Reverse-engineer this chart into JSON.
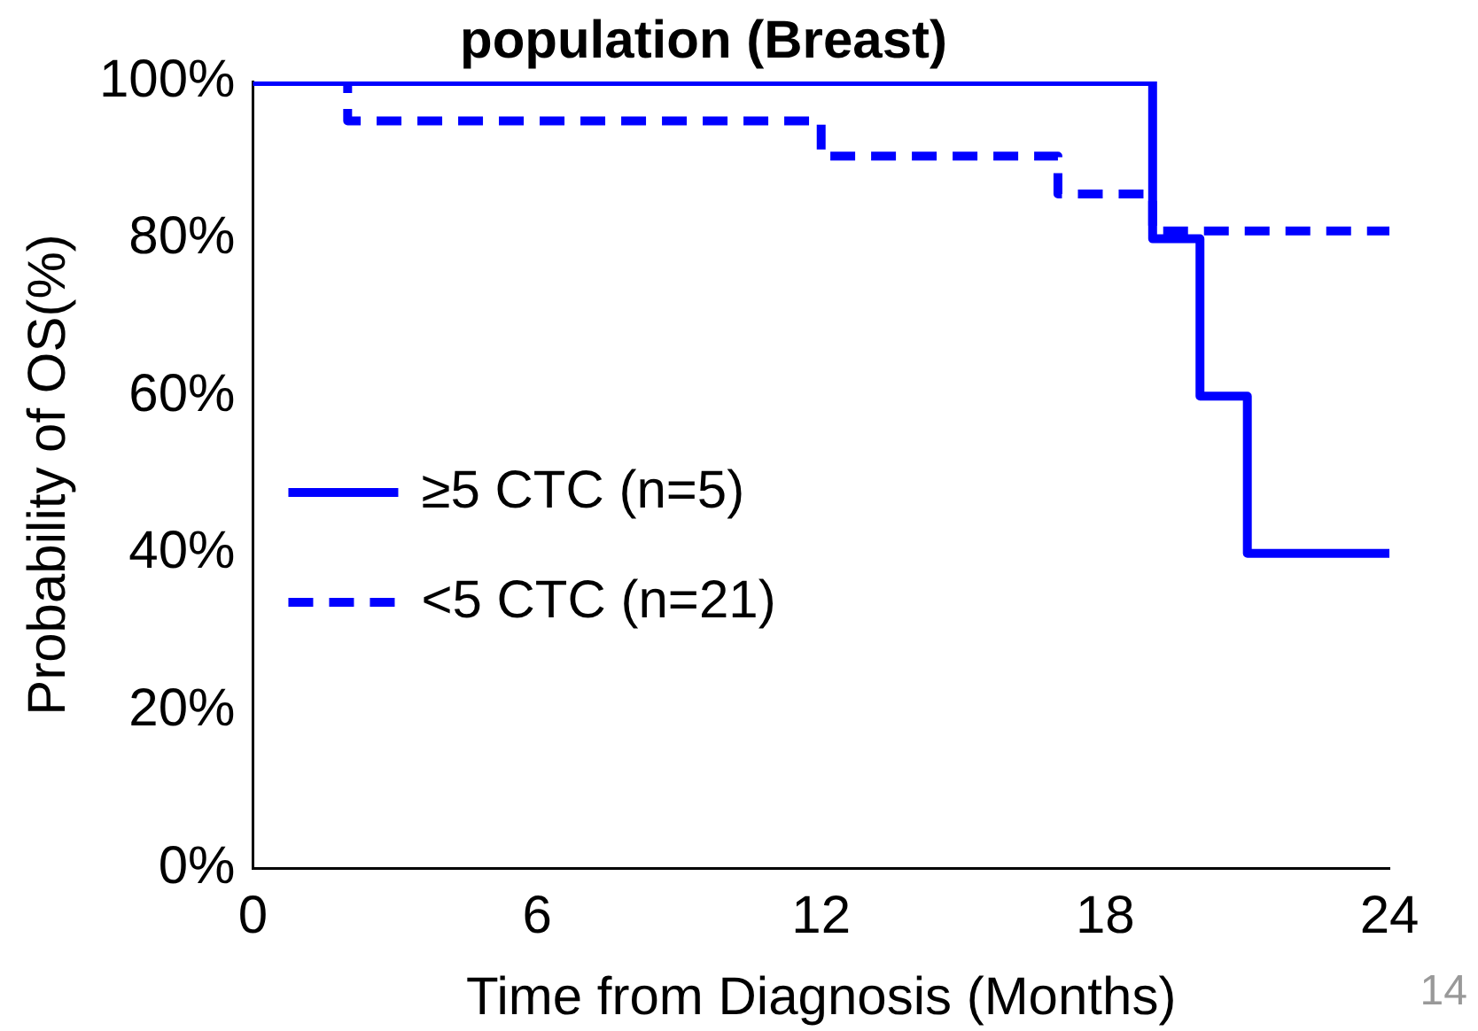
{
  "chart_data": {
    "type": "step",
    "title": "population (Breast)",
    "xlabel": "Time from Diagnosis (Months)",
    "ylabel": "Probability of OS(%)",
    "xlim": [
      0,
      24
    ],
    "xticks": [
      0,
      6,
      12,
      18,
      24
    ],
    "ylim": [
      0,
      100
    ],
    "yticks": [
      {
        "value": 0,
        "label": "0%"
      },
      {
        "value": 20,
        "label": "20%"
      },
      {
        "value": 40,
        "label": "40%"
      },
      {
        "value": 60,
        "label": "60%"
      },
      {
        "value": 80,
        "label": "80%"
      },
      {
        "value": 100,
        "label": "100%"
      }
    ],
    "series": [
      {
        "name": "≥5 CTC (n=5)",
        "color": "#0000ff",
        "line_style": "solid",
        "x": [
          0,
          19,
          20,
          21,
          24
        ],
        "values": [
          100,
          80,
          60,
          40,
          40
        ]
      },
      {
        "name": "<5 CTC (n=21)",
        "color": "#0000ff",
        "line_style": "dashed",
        "x": [
          0,
          2,
          12,
          17,
          19,
          24
        ],
        "values": [
          100,
          95,
          90.5,
          85.7,
          81,
          81
        ]
      }
    ],
    "grid": false,
    "legend": "bottom left",
    "marker": "none",
    "annotations": [
      "14"
    ]
  }
}
